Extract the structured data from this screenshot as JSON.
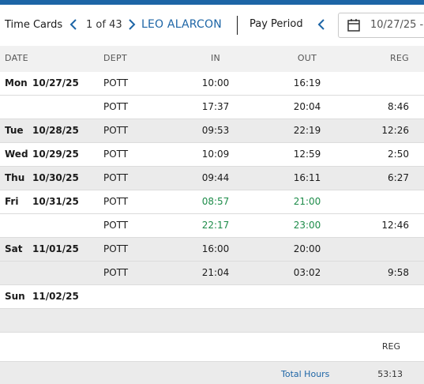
{
  "header": {
    "title": "Time Cards",
    "record_position": "1 of 43",
    "employee_name": "LEO ALARCON",
    "pay_period_label": "Pay Period",
    "date_value": "10/27/25 -"
  },
  "columns": {
    "date": "DATE",
    "dept": "DEPT",
    "in": "IN",
    "out": "OUT",
    "reg": "REG"
  },
  "rows": [
    {
      "day": "Mon",
      "date": "10/27/25",
      "dept": "POTT",
      "in": "10:00",
      "out": "16:19",
      "reg": ""
    },
    {
      "day": "",
      "date": "",
      "dept": "POTT",
      "in": "17:37",
      "out": "20:04",
      "reg": "8:46"
    },
    {
      "day": "Tue",
      "date": "10/28/25",
      "dept": "POTT",
      "in": "09:53",
      "out": "22:19",
      "reg": "12:26"
    },
    {
      "day": "Wed",
      "date": "10/29/25",
      "dept": "POTT",
      "in": "10:09",
      "out": "12:59",
      "reg": "2:50"
    },
    {
      "day": "Thu",
      "date": "10/30/25",
      "dept": "POTT",
      "in": "09:44",
      "out": "16:11",
      "reg": "6:27"
    },
    {
      "day": "Fri",
      "date": "10/31/25",
      "dept": "POTT",
      "in": "08:57",
      "out": "21:00",
      "reg": ""
    },
    {
      "day": "",
      "date": "",
      "dept": "POTT",
      "in": "22:17",
      "out": "23:00",
      "reg": "12:46"
    },
    {
      "day": "Sat",
      "date": "11/01/25",
      "dept": "POTT",
      "in": "16:00",
      "out": "20:00",
      "reg": ""
    },
    {
      "day": "",
      "date": "",
      "dept": "POTT",
      "in": "21:04",
      "out": "03:02",
      "reg": "9:58"
    },
    {
      "day": "Sun",
      "date": "11/02/25",
      "dept": "",
      "in": "",
      "out": "",
      "reg": ""
    }
  ],
  "totals": {
    "column_label": "REG",
    "label": "Total Hours",
    "reg_total": "53:13"
  },
  "colors": {
    "accent": "#1d65a6",
    "edited_time": "#1e8c4a",
    "row_shade": "#ebebeb"
  },
  "icons": {
    "prev": "chevron-left-icon",
    "next": "chevron-right-icon",
    "calendar": "calendar-icon"
  }
}
